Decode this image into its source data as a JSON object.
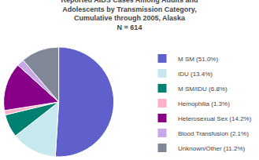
{
  "chart_data": {
    "type": "pie",
    "title": "Reported AIDS Cases Among Adults and\nAdolescents by Transmission Category,\nCumulative through 2005, Alaska",
    "subtitle": "N = 614",
    "categories": [
      "M SM (51.0%)",
      "IDU (13.4%)",
      "M SM/IDU (6.8%)",
      "Hemophilia (1.3%)",
      "Heterosexual Sex (14.2%)",
      "Blood Transfusion (2.1%)",
      "Unknown/Other (11.2%)"
    ],
    "values": [
      51.0,
      13.4,
      6.8,
      1.3,
      14.2,
      2.1,
      11.2
    ],
    "colors": [
      "#6060CC",
      "#C8E8F0",
      "#008070",
      "#FFB0C8",
      "#880088",
      "#C8A8E8",
      "#808898"
    ],
    "legend": "right"
  }
}
